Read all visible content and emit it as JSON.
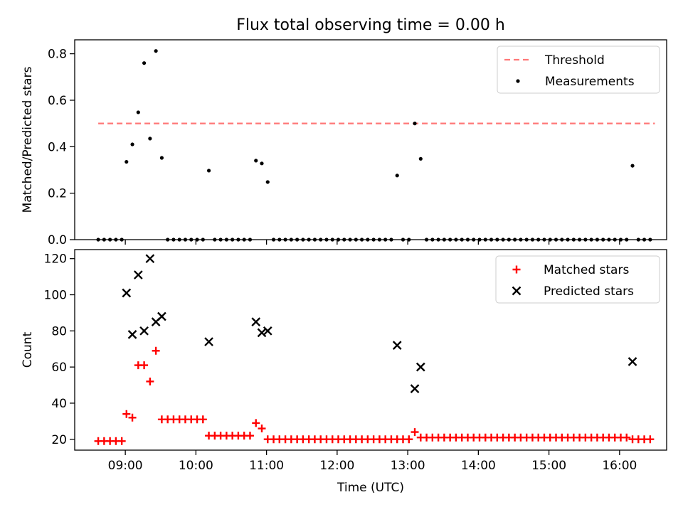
{
  "title": "Flux total observing time = 0.00 h",
  "xlabel": "Time (UTC)",
  "colors": {
    "threshold": "#ff7777",
    "measurement": "#000000",
    "matched": "#ff0000",
    "predicted": "#000000",
    "axes": "#000000"
  },
  "chart_data": [
    {
      "type": "scatter",
      "ylabel": "Matched/Predicted stars",
      "xlim": [
        "08:17",
        "16:40"
      ],
      "ylim": [
        0,
        0.86
      ],
      "yticks": [
        0.0,
        0.2,
        0.4,
        0.6,
        0.8
      ],
      "ytick_labels": [
        "0.0",
        "0.2",
        "0.4",
        "0.6",
        "0.8"
      ],
      "xtick_labels_shown": false,
      "legend": {
        "position": "top-right",
        "entries": [
          "Threshold",
          "Measurements"
        ]
      },
      "threshold": {
        "name": "Threshold",
        "value": 0.5,
        "x_range": [
          "08:37",
          "16:30"
        ],
        "style": "dashed"
      },
      "series": [
        {
          "name": "Measurements",
          "marker": "dot",
          "points": [
            [
              "08:37",
              0.0
            ],
            [
              "08:42",
              0.0
            ],
            [
              "08:47",
              0.0
            ],
            [
              "08:52",
              0.0
            ],
            [
              "08:57",
              0.0
            ],
            [
              "09:01",
              0.335
            ],
            [
              "09:06",
              0.41
            ],
            [
              "09:11",
              0.548
            ],
            [
              "09:16",
              0.76
            ],
            [
              "09:21",
              0.435
            ],
            [
              "09:26",
              0.812
            ],
            [
              "09:31",
              0.352
            ],
            [
              "09:36",
              0.0
            ],
            [
              "09:41",
              0.0
            ],
            [
              "09:46",
              0.0
            ],
            [
              "09:51",
              0.0
            ],
            [
              "09:56",
              0.0
            ],
            [
              "10:01",
              0.0
            ],
            [
              "10:06",
              0.0
            ],
            [
              "10:11",
              0.297
            ],
            [
              "10:16",
              0.0
            ],
            [
              "10:21",
              0.0
            ],
            [
              "10:26",
              0.0
            ],
            [
              "10:31",
              0.0
            ],
            [
              "10:36",
              0.0
            ],
            [
              "10:41",
              0.0
            ],
            [
              "10:46",
              0.0
            ],
            [
              "10:51",
              0.34
            ],
            [
              "10:56",
              0.328
            ],
            [
              "11:01",
              0.248
            ],
            [
              "11:06",
              0.0
            ],
            [
              "11:11",
              0.0
            ],
            [
              "11:16",
              0.0
            ],
            [
              "11:21",
              0.0
            ],
            [
              "11:26",
              0.0
            ],
            [
              "11:31",
              0.0
            ],
            [
              "11:36",
              0.0
            ],
            [
              "11:41",
              0.0
            ],
            [
              "11:46",
              0.0
            ],
            [
              "11:51",
              0.0
            ],
            [
              "11:56",
              0.0
            ],
            [
              "12:01",
              0.0
            ],
            [
              "12:06",
              0.0
            ],
            [
              "12:11",
              0.0
            ],
            [
              "12:16",
              0.0
            ],
            [
              "12:21",
              0.0
            ],
            [
              "12:26",
              0.0
            ],
            [
              "12:31",
              0.0
            ],
            [
              "12:36",
              0.0
            ],
            [
              "12:41",
              0.0
            ],
            [
              "12:46",
              0.0
            ],
            [
              "12:51",
              0.276
            ],
            [
              "12:56",
              0.0
            ],
            [
              "13:01",
              0.0
            ],
            [
              "13:06",
              0.5
            ],
            [
              "13:11",
              0.348
            ],
            [
              "13:16",
              0.0
            ],
            [
              "13:21",
              0.0
            ],
            [
              "13:26",
              0.0
            ],
            [
              "13:31",
              0.0
            ],
            [
              "13:36",
              0.0
            ],
            [
              "13:41",
              0.0
            ],
            [
              "13:46",
              0.0
            ],
            [
              "13:51",
              0.0
            ],
            [
              "13:56",
              0.0
            ],
            [
              "14:01",
              0.0
            ],
            [
              "14:06",
              0.0
            ],
            [
              "14:11",
              0.0
            ],
            [
              "14:16",
              0.0
            ],
            [
              "14:21",
              0.0
            ],
            [
              "14:26",
              0.0
            ],
            [
              "14:31",
              0.0
            ],
            [
              "14:36",
              0.0
            ],
            [
              "14:41",
              0.0
            ],
            [
              "14:46",
              0.0
            ],
            [
              "14:51",
              0.0
            ],
            [
              "14:56",
              0.0
            ],
            [
              "15:01",
              0.0
            ],
            [
              "15:06",
              0.0
            ],
            [
              "15:11",
              0.0
            ],
            [
              "15:16",
              0.0
            ],
            [
              "15:21",
              0.0
            ],
            [
              "15:26",
              0.0
            ],
            [
              "15:31",
              0.0
            ],
            [
              "15:36",
              0.0
            ],
            [
              "15:41",
              0.0
            ],
            [
              "15:46",
              0.0
            ],
            [
              "15:51",
              0.0
            ],
            [
              "15:56",
              0.0
            ],
            [
              "16:01",
              0.0
            ],
            [
              "16:06",
              0.0
            ],
            [
              "16:11",
              0.318
            ],
            [
              "16:16",
              0.0
            ],
            [
              "16:21",
              0.0
            ],
            [
              "16:26",
              0.0
            ]
          ]
        }
      ]
    },
    {
      "type": "scatter",
      "ylabel": "Count",
      "xlim": [
        "08:17",
        "16:40"
      ],
      "ylim": [
        14,
        125
      ],
      "yticks": [
        20,
        40,
        60,
        80,
        100,
        120
      ],
      "ytick_labels": [
        "20",
        "40",
        "60",
        "80",
        "100",
        "120"
      ],
      "xticks": [
        "09:00",
        "10:00",
        "11:00",
        "12:00",
        "13:00",
        "14:00",
        "15:00",
        "16:00"
      ],
      "xtick_labels": [
        "09:00",
        "10:00",
        "11:00",
        "12:00",
        "13:00",
        "14:00",
        "15:00",
        "16:00"
      ],
      "legend": {
        "position": "top-right",
        "entries": [
          "Matched stars",
          "Predicted stars"
        ]
      },
      "series": [
        {
          "name": "Matched stars",
          "marker": "plus",
          "points": [
            [
              "08:37",
              19
            ],
            [
              "08:42",
              19
            ],
            [
              "08:47",
              19
            ],
            [
              "08:52",
              19
            ],
            [
              "08:57",
              19
            ],
            [
              "09:01",
              34
            ],
            [
              "09:06",
              32
            ],
            [
              "09:11",
              61
            ],
            [
              "09:16",
              61
            ],
            [
              "09:21",
              52
            ],
            [
              "09:26",
              69
            ],
            [
              "09:31",
              31
            ],
            [
              "09:36",
              31
            ],
            [
              "09:41",
              31
            ],
            [
              "09:46",
              31
            ],
            [
              "09:51",
              31
            ],
            [
              "09:56",
              31
            ],
            [
              "10:01",
              31
            ],
            [
              "10:06",
              31
            ],
            [
              "10:11",
              22
            ],
            [
              "10:16",
              22
            ],
            [
              "10:21",
              22
            ],
            [
              "10:26",
              22
            ],
            [
              "10:31",
              22
            ],
            [
              "10:36",
              22
            ],
            [
              "10:41",
              22
            ],
            [
              "10:46",
              22
            ],
            [
              "10:51",
              29
            ],
            [
              "10:56",
              26
            ],
            [
              "11:01",
              20
            ],
            [
              "11:06",
              20
            ],
            [
              "11:11",
              20
            ],
            [
              "11:16",
              20
            ],
            [
              "11:21",
              20
            ],
            [
              "11:26",
              20
            ],
            [
              "11:31",
              20
            ],
            [
              "11:36",
              20
            ],
            [
              "11:41",
              20
            ],
            [
              "11:46",
              20
            ],
            [
              "11:51",
              20
            ],
            [
              "11:56",
              20
            ],
            [
              "12:01",
              20
            ],
            [
              "12:06",
              20
            ],
            [
              "12:11",
              20
            ],
            [
              "12:16",
              20
            ],
            [
              "12:21",
              20
            ],
            [
              "12:26",
              20
            ],
            [
              "12:31",
              20
            ],
            [
              "12:36",
              20
            ],
            [
              "12:41",
              20
            ],
            [
              "12:46",
              20
            ],
            [
              "12:51",
              20
            ],
            [
              "12:56",
              20
            ],
            [
              "13:01",
              20
            ],
            [
              "13:06",
              24
            ],
            [
              "13:11",
              21
            ],
            [
              "13:16",
              21
            ],
            [
              "13:21",
              21
            ],
            [
              "13:26",
              21
            ],
            [
              "13:31",
              21
            ],
            [
              "13:36",
              21
            ],
            [
              "13:41",
              21
            ],
            [
              "13:46",
              21
            ],
            [
              "13:51",
              21
            ],
            [
              "13:56",
              21
            ],
            [
              "14:01",
              21
            ],
            [
              "14:06",
              21
            ],
            [
              "14:11",
              21
            ],
            [
              "14:16",
              21
            ],
            [
              "14:21",
              21
            ],
            [
              "14:26",
              21
            ],
            [
              "14:31",
              21
            ],
            [
              "14:36",
              21
            ],
            [
              "14:41",
              21
            ],
            [
              "14:46",
              21
            ],
            [
              "14:51",
              21
            ],
            [
              "14:56",
              21
            ],
            [
              "15:01",
              21
            ],
            [
              "15:06",
              21
            ],
            [
              "15:11",
              21
            ],
            [
              "15:16",
              21
            ],
            [
              "15:21",
              21
            ],
            [
              "15:26",
              21
            ],
            [
              "15:31",
              21
            ],
            [
              "15:36",
              21
            ],
            [
              "15:41",
              21
            ],
            [
              "15:46",
              21
            ],
            [
              "15:51",
              21
            ],
            [
              "15:56",
              21
            ],
            [
              "16:01",
              21
            ],
            [
              "16:06",
              21
            ],
            [
              "16:11",
              20
            ],
            [
              "16:16",
              20
            ],
            [
              "16:21",
              20
            ],
            [
              "16:26",
              20
            ]
          ]
        },
        {
          "name": "Predicted stars",
          "marker": "x",
          "points": [
            [
              "09:01",
              101
            ],
            [
              "09:06",
              78
            ],
            [
              "09:11",
              111
            ],
            [
              "09:16",
              80
            ],
            [
              "09:21",
              120
            ],
            [
              "09:26",
              85
            ],
            [
              "09:31",
              88
            ],
            [
              "10:11",
              74
            ],
            [
              "10:51",
              85
            ],
            [
              "10:56",
              79
            ],
            [
              "11:01",
              80
            ],
            [
              "12:51",
              72
            ],
            [
              "13:06",
              48
            ],
            [
              "13:11",
              60
            ],
            [
              "16:11",
              63
            ]
          ]
        }
      ]
    }
  ]
}
